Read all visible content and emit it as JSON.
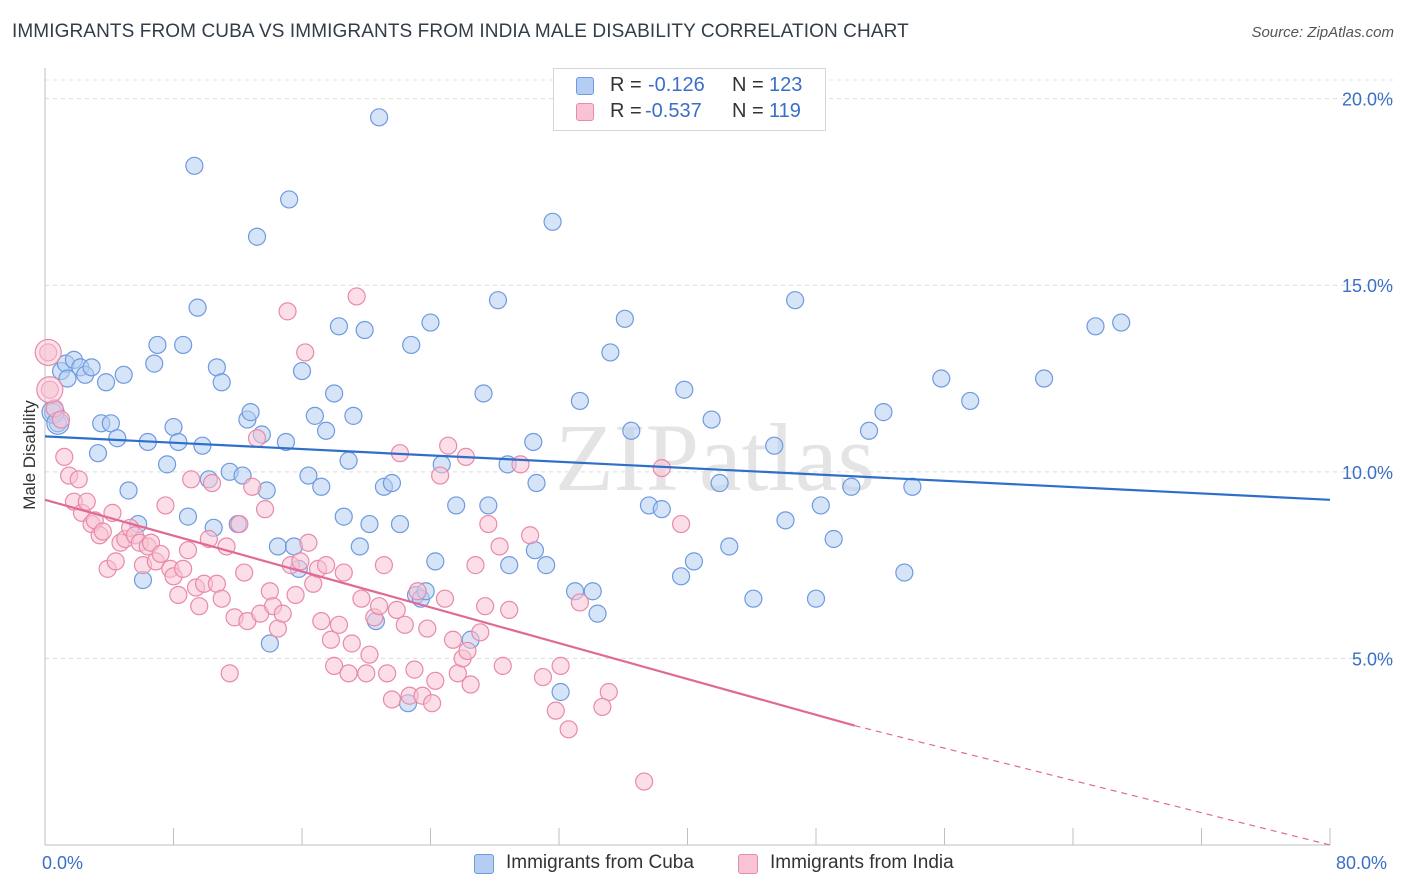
{
  "header": {
    "title": "IMMIGRANTS FROM CUBA VS IMMIGRANTS FROM INDIA MALE DISABILITY CORRELATION CHART",
    "source": "Source: ZipAtlas.com"
  },
  "legend_top": {
    "row1": {
      "r_label": "R =",
      "r_value": "-0.126",
      "n_label": "N =",
      "n_value": "123"
    },
    "row2": {
      "r_label": "R =",
      "r_value": "-0.537",
      "n_label": "N =",
      "n_value": "119"
    }
  },
  "watermark": "ZIPatlas",
  "colors": {
    "cuba": "#6f9ae0",
    "cuba_fill": "#b5cdf2",
    "india": "#e98aa8",
    "india_fill": "#f8c3d4",
    "cuba_line": "#2f6fc9",
    "india_line": "#e06a95",
    "tick_text": "#3a6fc8"
  },
  "chart_data": {
    "type": "scatter",
    "xlabel": "",
    "ylabel": "Male Disability",
    "xlim": [
      0,
      80
    ],
    "ylim": [
      0,
      20.5
    ],
    "x_tick_labels": [
      "0.0%",
      "80.0%"
    ],
    "y_ticks": [
      5,
      10,
      15,
      20
    ],
    "y_tick_labels": [
      "5.0%",
      "10.0%",
      "15.0%",
      "20.0%"
    ],
    "grid": "horizontal dashed",
    "legend_position": "bottom-center",
    "series": [
      {
        "name": "Immigrants from Cuba",
        "r": -0.126,
        "n": 123,
        "trend": {
          "x": [
            0,
            80
          ],
          "y": [
            10.95,
            9.25
          ]
        },
        "points": [
          [
            0.5,
            11.6
          ],
          [
            0.8,
            11.3
          ],
          [
            1.0,
            12.7
          ],
          [
            1.3,
            12.9
          ],
          [
            1.4,
            12.5
          ],
          [
            1.8,
            13.0
          ],
          [
            2.2,
            12.8
          ],
          [
            2.5,
            12.6
          ],
          [
            2.9,
            12.8
          ],
          [
            3.3,
            10.5
          ],
          [
            3.5,
            11.3
          ],
          [
            3.8,
            12.4
          ],
          [
            4.1,
            11.3
          ],
          [
            4.5,
            10.9
          ],
          [
            4.9,
            12.6
          ],
          [
            5.2,
            9.5
          ],
          [
            5.8,
            8.6
          ],
          [
            6.1,
            7.1
          ],
          [
            6.4,
            10.8
          ],
          [
            6.8,
            12.9
          ],
          [
            7.0,
            13.4
          ],
          [
            7.6,
            10.2
          ],
          [
            8.0,
            11.2
          ],
          [
            8.3,
            10.8
          ],
          [
            8.6,
            13.4
          ],
          [
            8.9,
            8.8
          ],
          [
            9.3,
            18.2
          ],
          [
            9.5,
            14.4
          ],
          [
            9.8,
            10.7
          ],
          [
            10.2,
            9.8
          ],
          [
            10.5,
            8.5
          ],
          [
            10.7,
            12.8
          ],
          [
            11.0,
            12.4
          ],
          [
            11.5,
            10.0
          ],
          [
            12.0,
            8.6
          ],
          [
            12.3,
            9.9
          ],
          [
            12.6,
            11.4
          ],
          [
            12.8,
            11.6
          ],
          [
            13.2,
            16.3
          ],
          [
            13.5,
            11.0
          ],
          [
            13.8,
            9.5
          ],
          [
            14.0,
            5.4
          ],
          [
            14.5,
            8.0
          ],
          [
            15.0,
            10.8
          ],
          [
            15.2,
            17.3
          ],
          [
            15.5,
            8.0
          ],
          [
            15.8,
            7.4
          ],
          [
            16.0,
            12.7
          ],
          [
            16.4,
            9.9
          ],
          [
            16.8,
            11.5
          ],
          [
            17.2,
            9.6
          ],
          [
            17.5,
            11.1
          ],
          [
            18.0,
            12.1
          ],
          [
            18.3,
            13.9
          ],
          [
            18.6,
            8.8
          ],
          [
            18.9,
            10.3
          ],
          [
            19.2,
            11.5
          ],
          [
            19.6,
            8.0
          ],
          [
            19.9,
            13.8
          ],
          [
            20.2,
            8.6
          ],
          [
            20.6,
            6.0
          ],
          [
            20.8,
            19.5
          ],
          [
            21.1,
            9.6
          ],
          [
            21.6,
            9.7
          ],
          [
            22.1,
            8.6
          ],
          [
            22.6,
            3.8
          ],
          [
            22.8,
            13.4
          ],
          [
            23.1,
            6.7
          ],
          [
            23.4,
            6.6
          ],
          [
            23.7,
            6.8
          ],
          [
            24.0,
            14.0
          ],
          [
            24.3,
            7.6
          ],
          [
            24.7,
            10.2
          ],
          [
            25.6,
            9.1
          ],
          [
            26.5,
            5.5
          ],
          [
            27.3,
            12.1
          ],
          [
            27.6,
            9.1
          ],
          [
            28.2,
            14.6
          ],
          [
            28.8,
            10.2
          ],
          [
            28.9,
            7.5
          ],
          [
            30.5,
            7.9
          ],
          [
            30.4,
            10.8
          ],
          [
            30.6,
            9.7
          ],
          [
            31.2,
            7.5
          ],
          [
            31.6,
            16.7
          ],
          [
            32.1,
            4.1
          ],
          [
            33.0,
            6.8
          ],
          [
            33.3,
            11.9
          ],
          [
            34.1,
            6.8
          ],
          [
            34.4,
            6.2
          ],
          [
            35.2,
            13.2
          ],
          [
            36.1,
            14.1
          ],
          [
            36.5,
            11.1
          ],
          [
            37.6,
            9.1
          ],
          [
            38.4,
            9.0
          ],
          [
            39.6,
            7.2
          ],
          [
            39.8,
            12.2
          ],
          [
            40.4,
            7.6
          ],
          [
            41.5,
            11.4
          ],
          [
            42.0,
            9.7
          ],
          [
            42.6,
            8.0
          ],
          [
            44.1,
            6.6
          ],
          [
            45.4,
            10.7
          ],
          [
            46.1,
            8.7
          ],
          [
            46.7,
            14.6
          ],
          [
            48.0,
            6.6
          ],
          [
            48.3,
            9.1
          ],
          [
            49.1,
            8.2
          ],
          [
            50.2,
            9.6
          ],
          [
            51.3,
            11.1
          ],
          [
            52.2,
            11.6
          ],
          [
            53.5,
            7.3
          ],
          [
            54.0,
            9.6
          ],
          [
            55.8,
            12.5
          ],
          [
            57.6,
            11.9
          ],
          [
            62.2,
            12.5
          ],
          [
            65.4,
            13.9
          ],
          [
            67.0,
            14.0
          ]
        ]
      },
      {
        "name": "Immigrants from India",
        "r": -0.537,
        "n": 119,
        "trend": {
          "x": [
            0,
            50.4
          ],
          "y": [
            9.25,
            3.2
          ]
        },
        "trend_dashed": {
          "x": [
            50.4,
            80
          ],
          "y": [
            3.2,
            0
          ]
        },
        "points": [
          [
            0.2,
            13.2
          ],
          [
            0.3,
            12.2
          ],
          [
            0.6,
            11.7
          ],
          [
            1.0,
            11.4
          ],
          [
            1.2,
            10.4
          ],
          [
            1.5,
            9.9
          ],
          [
            1.8,
            9.2
          ],
          [
            2.1,
            9.8
          ],
          [
            2.3,
            8.9
          ],
          [
            2.6,
            9.2
          ],
          [
            2.9,
            8.6
          ],
          [
            3.1,
            8.7
          ],
          [
            3.4,
            8.3
          ],
          [
            3.6,
            8.4
          ],
          [
            3.9,
            7.4
          ],
          [
            4.2,
            8.9
          ],
          [
            4.4,
            7.6
          ],
          [
            4.7,
            8.1
          ],
          [
            5.0,
            8.2
          ],
          [
            5.3,
            8.5
          ],
          [
            5.6,
            8.3
          ],
          [
            5.9,
            8.1
          ],
          [
            6.1,
            7.5
          ],
          [
            6.4,
            8.0
          ],
          [
            6.6,
            8.1
          ],
          [
            6.9,
            7.6
          ],
          [
            7.2,
            7.8
          ],
          [
            7.5,
            9.1
          ],
          [
            7.8,
            7.4
          ],
          [
            8.0,
            7.2
          ],
          [
            8.3,
            6.7
          ],
          [
            8.6,
            7.4
          ],
          [
            8.9,
            7.9
          ],
          [
            9.1,
            9.8
          ],
          [
            9.4,
            6.9
          ],
          [
            9.6,
            6.4
          ],
          [
            9.9,
            7.0
          ],
          [
            10.2,
            8.2
          ],
          [
            10.4,
            9.7
          ],
          [
            10.7,
            7.0
          ],
          [
            11.0,
            6.6
          ],
          [
            11.3,
            8.0
          ],
          [
            11.5,
            4.6
          ],
          [
            11.8,
            6.1
          ],
          [
            12.1,
            8.6
          ],
          [
            12.4,
            7.3
          ],
          [
            12.6,
            6.0
          ],
          [
            12.9,
            9.6
          ],
          [
            13.2,
            10.9
          ],
          [
            13.4,
            6.2
          ],
          [
            13.7,
            9.0
          ],
          [
            14.0,
            6.8
          ],
          [
            14.2,
            6.4
          ],
          [
            14.5,
            5.8
          ],
          [
            14.8,
            6.2
          ],
          [
            15.1,
            14.3
          ],
          [
            15.3,
            7.5
          ],
          [
            15.6,
            6.7
          ],
          [
            15.9,
            7.6
          ],
          [
            16.2,
            13.2
          ],
          [
            16.4,
            8.1
          ],
          [
            16.7,
            7.0
          ],
          [
            17.0,
            7.4
          ],
          [
            17.2,
            6.0
          ],
          [
            17.5,
            7.5
          ],
          [
            17.8,
            5.5
          ],
          [
            18.0,
            4.8
          ],
          [
            18.3,
            5.9
          ],
          [
            18.6,
            7.3
          ],
          [
            18.9,
            4.6
          ],
          [
            19.1,
            5.4
          ],
          [
            19.4,
            14.7
          ],
          [
            19.7,
            6.6
          ],
          [
            20.0,
            4.6
          ],
          [
            20.2,
            5.1
          ],
          [
            20.5,
            6.1
          ],
          [
            20.8,
            6.4
          ],
          [
            21.1,
            7.5
          ],
          [
            21.3,
            4.6
          ],
          [
            21.6,
            3.9
          ],
          [
            21.9,
            6.3
          ],
          [
            22.1,
            10.5
          ],
          [
            22.4,
            5.9
          ],
          [
            22.7,
            4.0
          ],
          [
            23.0,
            4.7
          ],
          [
            23.2,
            6.8
          ],
          [
            23.5,
            4.0
          ],
          [
            23.8,
            5.8
          ],
          [
            24.1,
            3.8
          ],
          [
            24.3,
            4.4
          ],
          [
            24.6,
            9.9
          ],
          [
            24.9,
            6.6
          ],
          [
            25.1,
            10.7
          ],
          [
            25.4,
            5.5
          ],
          [
            25.7,
            4.6
          ],
          [
            26.0,
            5.0
          ],
          [
            26.3,
            5.2
          ],
          [
            26.5,
            4.3
          ],
          [
            26.8,
            7.5
          ],
          [
            27.1,
            5.7
          ],
          [
            27.4,
            6.4
          ],
          [
            27.6,
            8.6
          ],
          [
            28.5,
            4.8
          ],
          [
            28.9,
            6.3
          ],
          [
            29.6,
            10.2
          ],
          [
            31.0,
            4.5
          ],
          [
            31.8,
            3.6
          ],
          [
            32.6,
            3.1
          ],
          [
            33.3,
            6.5
          ],
          [
            35.1,
            4.1
          ],
          [
            37.3,
            1.7
          ],
          [
            28.3,
            8.0
          ],
          [
            30.2,
            8.3
          ],
          [
            34.7,
            3.7
          ],
          [
            38.4,
            10.1
          ],
          [
            39.6,
            8.6
          ],
          [
            32.1,
            4.8
          ],
          [
            26.2,
            10.4
          ]
        ]
      }
    ]
  },
  "bottom_legend": {
    "item1": "Immigrants from Cuba",
    "item2": "Immigrants from India"
  }
}
